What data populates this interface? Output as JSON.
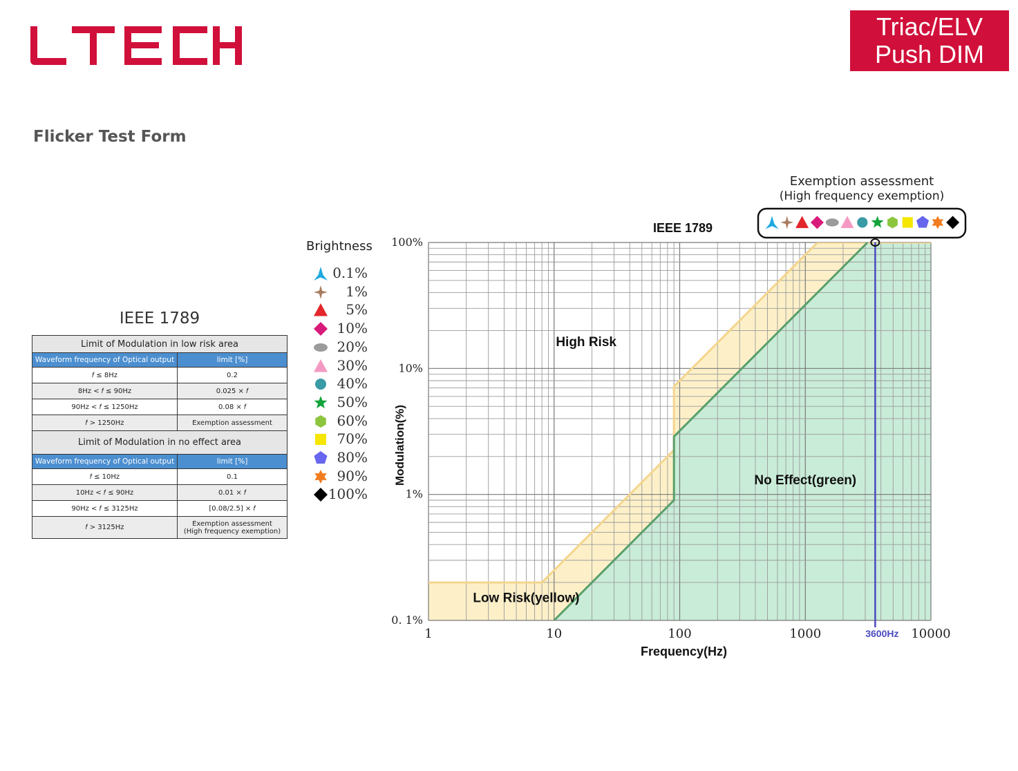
{
  "brand": {
    "logo_text": "LTECH",
    "logo_color": "#d0103a",
    "badge_lines": [
      "Triac/ELV",
      "Push DIM"
    ],
    "badge_color": "#d0103a"
  },
  "section_title": "Flicker Test Form",
  "standard_table": {
    "title": "IEEE 1789",
    "low_risk": {
      "heading": "Limit of Modulation in low risk area",
      "col1": "Waveform frequency of Optical output",
      "col2": "limit [%]",
      "rows": [
        [
          "𝑓 ≤ 8Hz",
          "0.2"
        ],
        [
          "8Hz < 𝑓 ≤ 90Hz",
          "0.025 × 𝑓"
        ],
        [
          "90Hz < 𝑓 ≤ 1250Hz",
          "0.08 × 𝑓"
        ],
        [
          "𝑓 > 1250Hz",
          "Exemption assessment"
        ]
      ]
    },
    "no_effect": {
      "heading": "Limit of Modulation in no effect area",
      "col1": "Waveform frequency of Optical output",
      "col2": "limit [%]",
      "rows": [
        [
          "𝑓 ≤ 10Hz",
          "0.1"
        ],
        [
          "10Hz < 𝑓 ≤ 90Hz",
          "0.01 × 𝑓"
        ],
        [
          "90Hz < 𝑓 ≤ 3125Hz",
          "[0.08/2.5] × 𝑓"
        ],
        [
          "𝑓 > 3125Hz",
          "Exemption assessment",
          "(High frequency exemption)"
        ]
      ]
    }
  },
  "legend": {
    "title": "Brightness",
    "items": [
      {
        "label": "0.1%",
        "shape": "tripod-icon",
        "color": "#1ea8e0"
      },
      {
        "label": "1%",
        "shape": "four-point-star-icon",
        "color": "#a87c5f"
      },
      {
        "label": "5%",
        "shape": "triangle-icon",
        "color": "#e3262b"
      },
      {
        "label": "10%",
        "shape": "diamond-icon",
        "color": "#d81b7a"
      },
      {
        "label": "20%",
        "shape": "ellipse-icon",
        "color": "#9b9b9b"
      },
      {
        "label": "30%",
        "shape": "triangle-icon",
        "color": "#f49ac2"
      },
      {
        "label": "40%",
        "shape": "circle-icon",
        "color": "#3a9aa6"
      },
      {
        "label": "50%",
        "shape": "star-icon",
        "color": "#12a33a"
      },
      {
        "label": "60%",
        "shape": "hexagon-icon",
        "color": "#8cc63f"
      },
      {
        "label": "70%",
        "shape": "square-icon",
        "color": "#f5e600"
      },
      {
        "label": "80%",
        "shape": "pentagon-icon",
        "color": "#6666ee"
      },
      {
        "label": "90%",
        "shape": "six-point-star-icon",
        "color": "#f27c22"
      },
      {
        "label": "100%",
        "shape": "diamond-icon",
        "color": "#000000"
      }
    ]
  },
  "chart_data": {
    "type": "line",
    "title": "IEEE 1789",
    "xlabel": "Frequency(Hz)",
    "ylabel": "Modulation(%)",
    "x_scale": "log",
    "y_scale": "log",
    "xlim": [
      1,
      10000
    ],
    "ylim": [
      0.1,
      100
    ],
    "x_ticks": [
      1,
      10,
      100,
      1000,
      10000
    ],
    "x_tick_labels": [
      "1",
      "10",
      "100",
      "1000",
      "10000"
    ],
    "y_ticks": [
      0.1,
      1,
      10,
      100
    ],
    "y_tick_labels": [
      "0. 1%",
      "1%",
      "10%",
      "100%"
    ],
    "grid": true,
    "series": [
      {
        "color": "#f4d58d",
        "fill": "#fdf0c8",
        "x": [
          1,
          8,
          90,
          90,
          1250
        ],
        "y": [
          0.2,
          0.2,
          2.25,
          7.2,
          100
        ]
      },
      {
        "color": "#5a9e6a",
        "fill": "#c9ecd8",
        "x": [
          10,
          90,
          90,
          3125
        ],
        "y": [
          0.1,
          0.9,
          2.88,
          100
        ]
      }
    ],
    "regions": [
      {
        "label": "High Risk",
        "x": 18,
        "y": 15
      },
      {
        "label": "No Effect(green)",
        "x": 1000,
        "y": 1.2
      },
      {
        "label": "Low Risk(yellow)",
        "x": 6,
        "y": 0.14
      }
    ],
    "marker_line": {
      "x": 3600,
      "label": "3600Hz",
      "color": "#4a4ac0"
    },
    "measured_point": {
      "x": 3600,
      "y": 100
    },
    "exemption_box": {
      "line1": "Exemption assessment",
      "line2": "(High frequency exemption)"
    }
  }
}
